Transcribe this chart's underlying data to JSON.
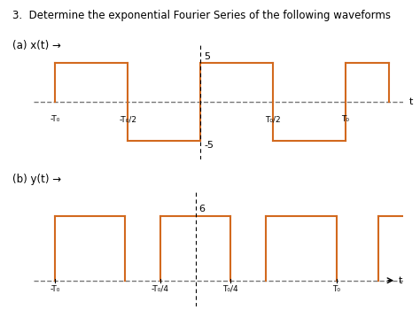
{
  "title": "3.  Determine the exponential Fourier Series of the following waveforms",
  "label_a": "(a) x(t) →",
  "label_b": "(b) y(t) →",
  "wave_color": "#D2691E",
  "axis_color": "#555555",
  "dashed_color": "#777777",
  "bg_color": "#ffffff",
  "amplitude_a": 5,
  "amplitude_b": 6,
  "label_5": "5",
  "label_m5": "-5",
  "label_6": "6",
  "tick_labels_a": [
    "-T₀",
    "-T₀/2",
    "T₀/2",
    "T₀"
  ],
  "tick_labels_b": [
    "-T₀",
    "-T₀/4",
    "T₀/4",
    "T₀"
  ],
  "arrow_label": "t"
}
